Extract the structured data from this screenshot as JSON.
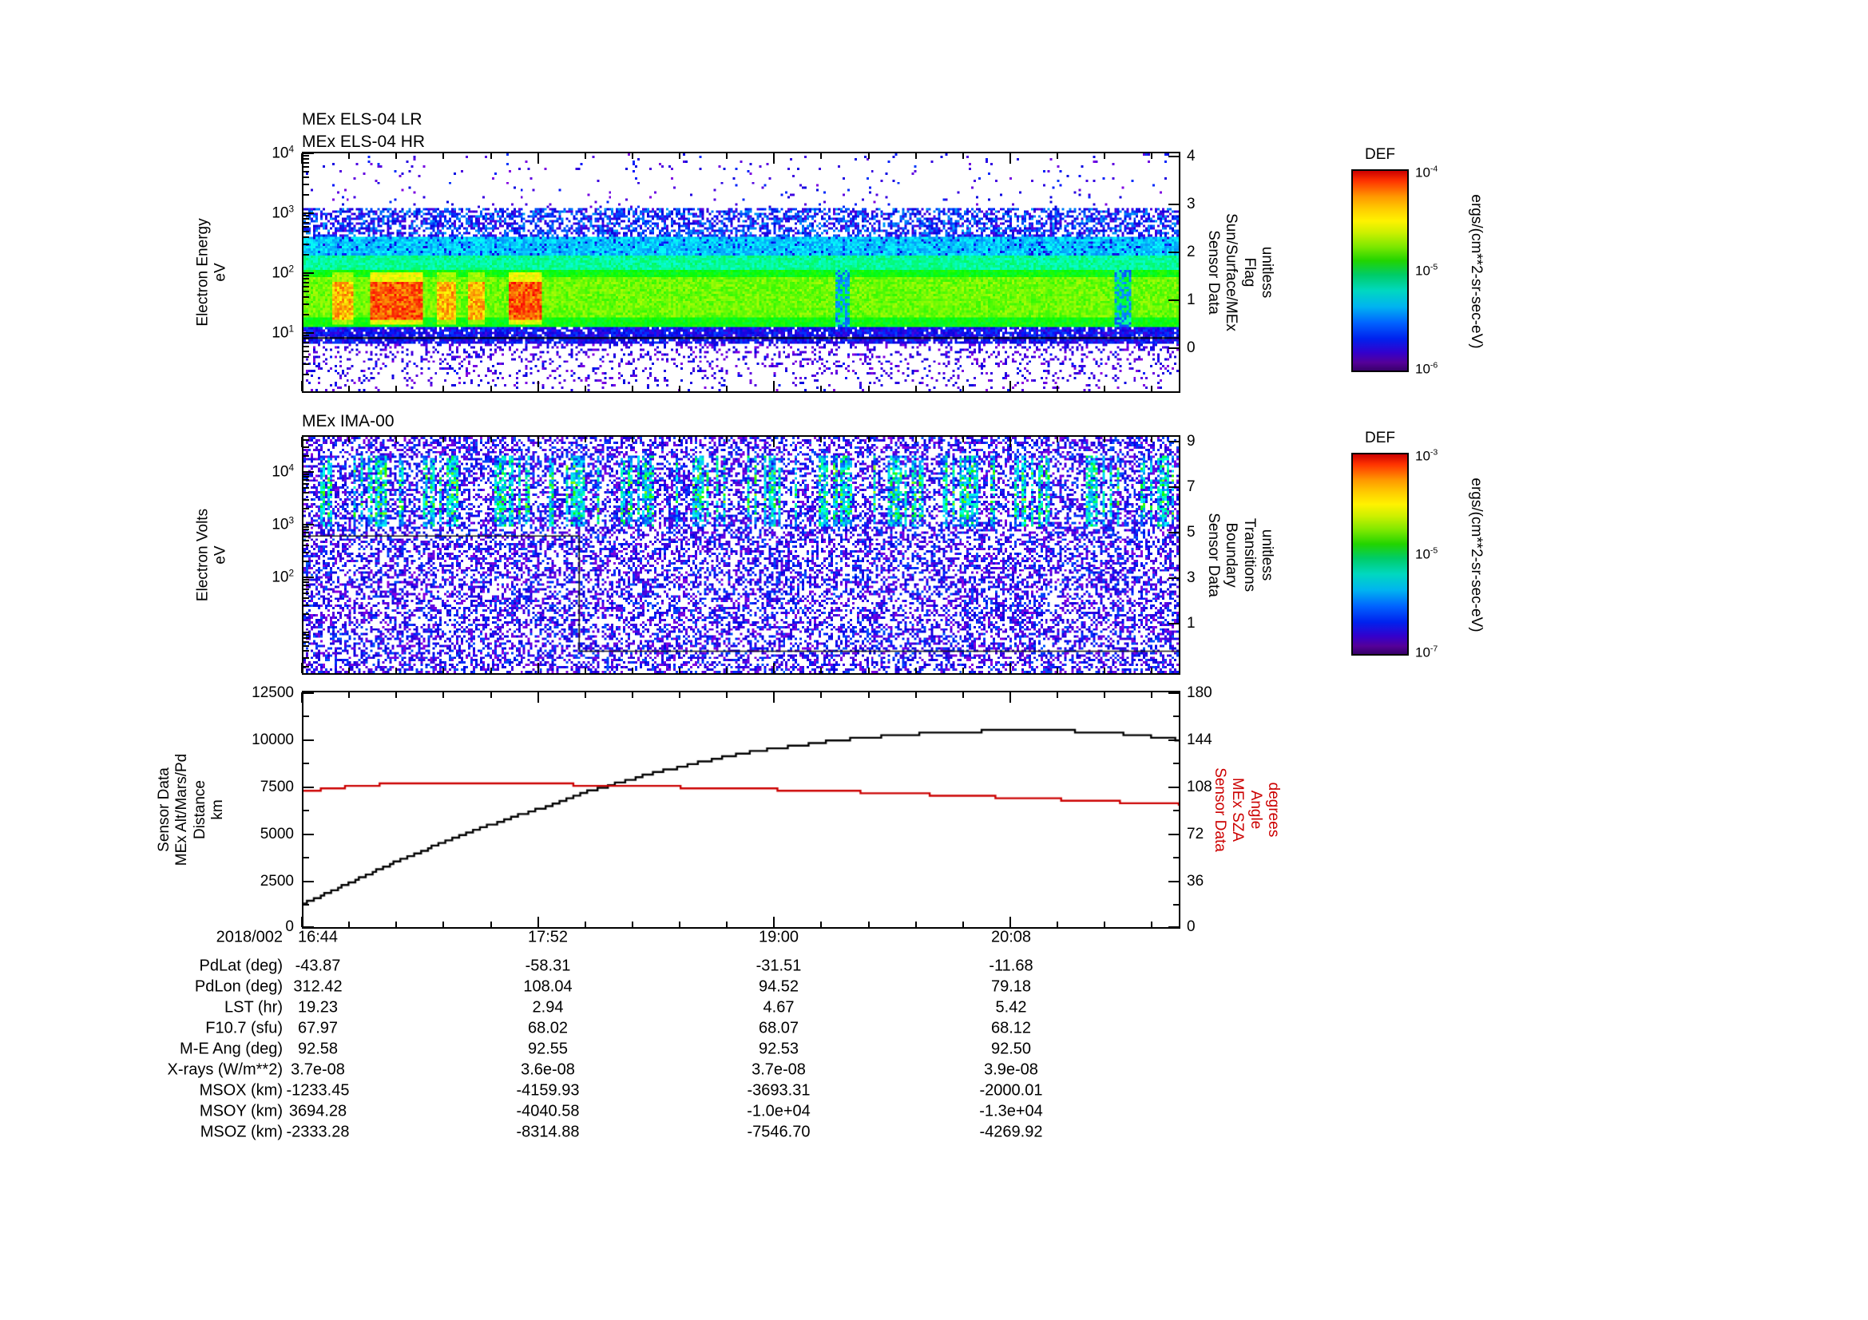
{
  "els_panel": {
    "title_lr": "MEx ELS-04 LR",
    "title_hr": "MEx ELS-04 HR",
    "ylabel_lines": [
      "Electron Energy",
      "eV"
    ],
    "y_tick_exponents": [
      4,
      3,
      2,
      1
    ],
    "right_label_lines": [
      "Sensor Data",
      "Sun/Surface/MEx",
      "Flag",
      "unitless"
    ],
    "right_ticks": [
      "4",
      "3",
      "2",
      "1",
      "0"
    ]
  },
  "els_colorbar": {
    "title": "DEF",
    "tick_exponents": [
      -4,
      -5,
      -6
    ],
    "unit_label": "ergs/(cm**2-sr-sec-eV)"
  },
  "ima_panel": {
    "title": "MEx IMA-00",
    "ylabel_lines": [
      "Electron Volts",
      "eV"
    ],
    "y_tick_exponents": [
      4,
      3,
      2
    ],
    "right_label_lines": [
      "Sensor Data",
      "Boundary",
      "Transitions",
      "unitless"
    ],
    "right_ticks": [
      "9",
      "7",
      "5",
      "3",
      "1"
    ]
  },
  "ima_colorbar": {
    "title": "DEF",
    "tick_exponents": [
      -3,
      -5,
      -7
    ],
    "unit_label": "ergs/(cm**2-sr-sec-eV)"
  },
  "line_panel": {
    "left_label_lines": [
      "Sensor Data",
      "MEx Alt/Mars/Pd",
      "Distance",
      "km"
    ],
    "left_ticks": [
      "12500",
      "10000",
      "7500",
      "5000",
      "2500",
      "0"
    ],
    "right_label_lines": [
      "Sensor Data",
      "MEx SZA",
      "Angle",
      "degrees"
    ],
    "right_ticks": [
      "180",
      "144",
      "108",
      "72",
      "36",
      "0"
    ]
  },
  "table": {
    "row_labels": [
      "2018/002",
      "PdLat (deg)",
      "PdLon (deg)",
      "LST (hr)",
      "F10.7 (sfu)",
      "M-E Ang (deg)",
      "X-rays (W/m**2)",
      "MSOX (km)",
      "MSOY (km)",
      "MSOZ (km)"
    ],
    "rows": [
      [
        "16:44",
        "17:52",
        "19:00",
        "20:08"
      ],
      [
        "-43.87",
        "-58.31",
        "-31.51",
        "-11.68"
      ],
      [
        "312.42",
        "108.04",
        "94.52",
        "79.18"
      ],
      [
        "19.23",
        "2.94",
        "4.67",
        "5.42"
      ],
      [
        "67.97",
        "68.02",
        "68.07",
        "68.12"
      ],
      [
        "92.58",
        "92.55",
        "92.53",
        "92.50"
      ],
      [
        "3.7e-08",
        "3.6e-08",
        "3.7e-08",
        "3.9e-08"
      ],
      [
        "-1233.45",
        "-4159.93",
        "-3693.31",
        "-2000.01"
      ],
      [
        "3694.28",
        "-4040.58",
        "-1.0e+04",
        "-1.3e+04"
      ],
      [
        "-2333.28",
        "-8314.88",
        "-7546.70",
        "-4269.92"
      ]
    ]
  },
  "chart_data": [
    {
      "type": "heatmap",
      "title": "MEx ELS-04 LR / MEx ELS-04 HR",
      "ylabel": "Electron Energy (eV)",
      "y_scale": "log",
      "y_range": [
        1,
        11000
      ],
      "x_ticks": [
        "16:44",
        "17:52",
        "19:00",
        "20:08"
      ],
      "x_minutes_span": 253,
      "colorbar": {
        "title": "DEF",
        "units": "ergs/(cm**2-sr-sec-eV)",
        "ticks": [
          "1e-4",
          "1e-5",
          "1e-6"
        ]
      },
      "features": [
        {
          "name": "thermal-electron-band",
          "energy_eV": [
            12,
            110
          ],
          "time_frac": [
            0,
            1
          ],
          "level": "high",
          "color": "green-yellow"
        },
        {
          "name": "hot-flux-patches",
          "energy_eV": [
            13,
            100
          ],
          "time_frac_windows": [
            [
              0.03,
              0.055
            ],
            [
              0.075,
              0.135
            ],
            [
              0.15,
              0.172
            ],
            [
              0.188,
              0.205
            ],
            [
              0.232,
              0.272
            ]
          ],
          "level": "saturated",
          "color": "red"
        },
        {
          "name": "mid-energy-band",
          "energy_eV": [
            110,
            420
          ],
          "time_frac": [
            0,
            1
          ],
          "level": "moderate",
          "color": "cyan"
        },
        {
          "name": "high-energy-speckle",
          "energy_eV": [
            420,
            1300
          ],
          "time_frac": [
            0,
            1
          ],
          "level": "low",
          "color": "blue-purple"
        },
        {
          "name": "sparse-dots",
          "energy_eV": [
            1300,
            10000
          ],
          "level": "very-low",
          "color": "purple"
        },
        {
          "name": "low-energy-speckle",
          "energy_eV": [
            1,
            7
          ],
          "level": "very-low",
          "color": "purple"
        }
      ],
      "overlay": {
        "flag_line_y_frac": 0.776
      }
    },
    {
      "type": "heatmap",
      "title": "MEx IMA-00",
      "ylabel": "Electron Volts (eV)",
      "y_scale": "log",
      "y_range": [
        1,
        50000
      ],
      "x_ticks": [
        "16:44",
        "17:52",
        "19:00",
        "20:08"
      ],
      "x_minutes_span": 253,
      "colorbar": {
        "title": "DEF",
        "units": "ergs/(cm**2-sr-sec-eV)",
        "ticks": [
          "1e-3",
          "1e-5",
          "1e-7"
        ]
      },
      "features": [
        {
          "name": "ion-energy-stripes",
          "energy_eV": [
            900,
            22000
          ],
          "time_frac": [
            0.02,
            1
          ],
          "level": "moderate",
          "color": "cyan-green vertical striping"
        },
        {
          "name": "background-speckle",
          "energy_eV": [
            1,
            50000
          ],
          "time_frac": [
            0,
            1
          ],
          "level": "low",
          "color": "purple-blue"
        }
      ],
      "overlay": {
        "boundary_points_frac": [
          [
            0,
            0.42
          ],
          [
            0.315,
            0.42
          ],
          [
            0.315,
            0.907
          ],
          [
            1,
            0.907
          ]
        ]
      }
    },
    {
      "type": "line",
      "x_unit": "minutes since 2018/002 16:44",
      "x_range": [
        0,
        253
      ],
      "x_ticks": [
        {
          "t": 0,
          "label": "16:44"
        },
        {
          "t": 68,
          "label": "17:52"
        },
        {
          "t": 136,
          "label": "19:00"
        },
        {
          "t": 204,
          "label": "20:08"
        }
      ],
      "series": [
        {
          "name": "MEx Alt/Mars/Pd Distance",
          "units": "km",
          "axis": "left",
          "ylim": [
            0,
            12500
          ],
          "color": "#000000",
          "x": [
            0,
            10,
            20,
            30,
            40,
            50,
            60,
            68,
            80,
            90,
            100,
            110,
            120,
            130,
            140,
            150,
            160,
            170,
            180,
            190,
            200,
            210,
            220,
            230,
            240,
            253
          ],
          "y": [
            1250,
            2100,
            2950,
            3750,
            4500,
            5200,
            5850,
            6300,
            7100,
            7650,
            8150,
            8600,
            9000,
            9350,
            9600,
            9850,
            10050,
            10200,
            10320,
            10400,
            10450,
            10470,
            10450,
            10380,
            10250,
            9980
          ]
        },
        {
          "name": "MEx SZA Angle",
          "units": "degrees",
          "axis": "right",
          "ylim": [
            0,
            180
          ],
          "color": "#cc0000",
          "x": [
            0,
            10,
            20,
            30,
            40,
            50,
            60,
            68,
            80,
            90,
            100,
            110,
            120,
            130,
            140,
            150,
            160,
            170,
            180,
            190,
            200,
            210,
            220,
            230,
            240,
            253
          ],
          "y": [
            104,
            107,
            109,
            110.5,
            111,
            111,
            110.5,
            110,
            109,
            108.5,
            108,
            107.2,
            106.5,
            106,
            105.2,
            104.5,
            103.6,
            102.7,
            101.7,
            100.7,
            99.7,
            98.7,
            97.7,
            96.6,
            95.5,
            94
          ]
        }
      ]
    }
  ]
}
